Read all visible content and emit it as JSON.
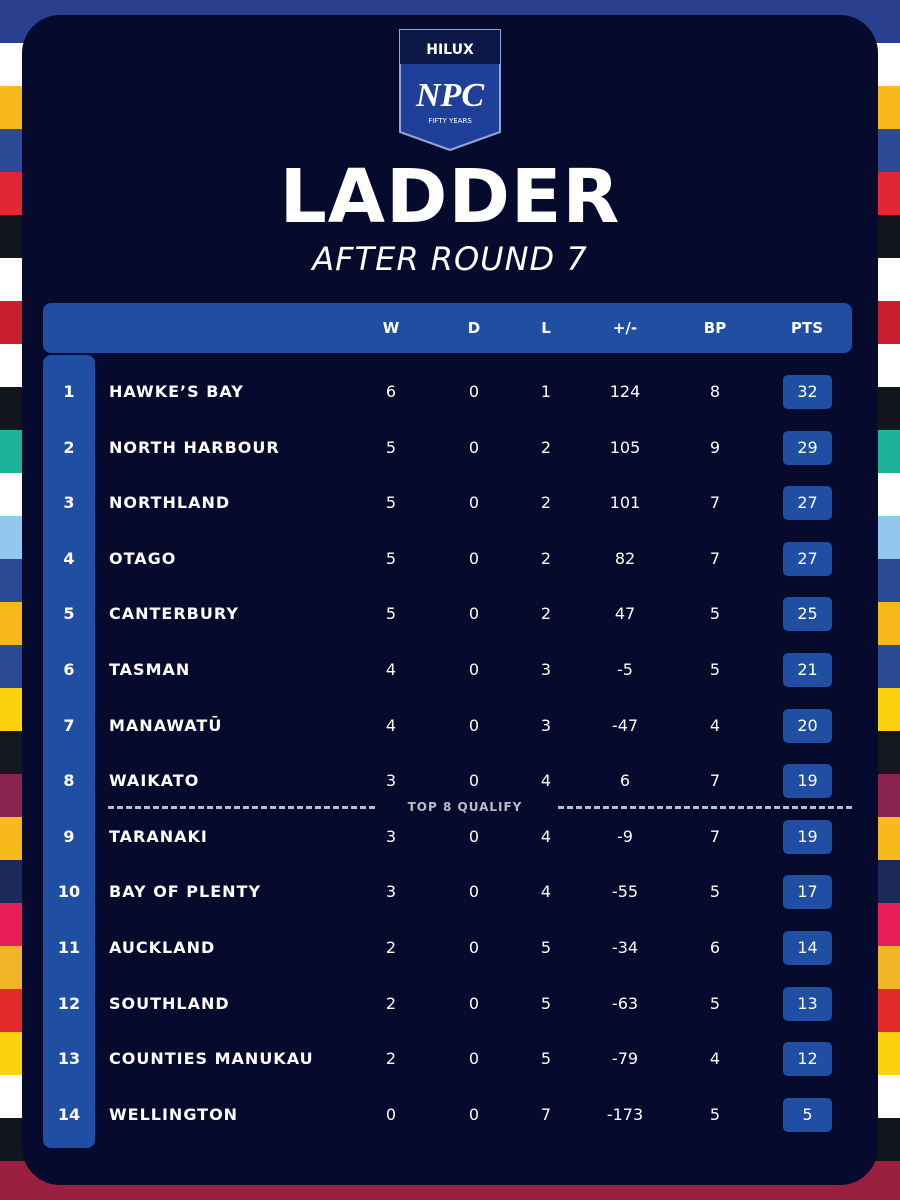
{
  "header": {
    "logo": {
      "brand": "HILUX",
      "mark": "NPC",
      "tagline": "FIFTY YEARS"
    },
    "title": "LADDER",
    "subtitle": "AFTER ROUND 7"
  },
  "table": {
    "columns": [
      "W",
      "D",
      "L",
      "+/-",
      "BP",
      "PTS"
    ],
    "rows": [
      [
        1,
        "HAWKE’S BAY",
        6,
        0,
        1,
        124,
        8,
        32
      ],
      [
        2,
        "NORTH HARBOUR",
        5,
        0,
        2,
        105,
        9,
        29
      ],
      [
        3,
        "NORTHLAND",
        5,
        0,
        2,
        101,
        7,
        27
      ],
      [
        4,
        "OTAGO",
        5,
        0,
        2,
        82,
        7,
        27
      ],
      [
        5,
        "CANTERBURY",
        5,
        0,
        2,
        47,
        5,
        25
      ],
      [
        6,
        "TASMAN",
        4,
        0,
        3,
        -5,
        5,
        21
      ],
      [
        7,
        "MANAWATŪ",
        4,
        0,
        3,
        -47,
        4,
        20
      ],
      [
        8,
        "WAIKATO",
        3,
        0,
        4,
        6,
        7,
        19
      ],
      [
        9,
        "TARANAKI",
        3,
        0,
        4,
        -9,
        7,
        19
      ],
      [
        10,
        "BAY OF PLENTY",
        3,
        0,
        4,
        -55,
        5,
        17
      ],
      [
        11,
        "AUCKLAND",
        2,
        0,
        5,
        -34,
        6,
        14
      ],
      [
        12,
        "SOUTHLAND",
        2,
        0,
        5,
        -63,
        5,
        13
      ],
      [
        13,
        "COUNTIES MANUKAU",
        2,
        0,
        5,
        -79,
        4,
        12
      ],
      [
        14,
        "WELLINGTON",
        0,
        0,
        7,
        -173,
        5,
        5
      ]
    ],
    "divider": "TOP 8 QUALIFY"
  }
}
